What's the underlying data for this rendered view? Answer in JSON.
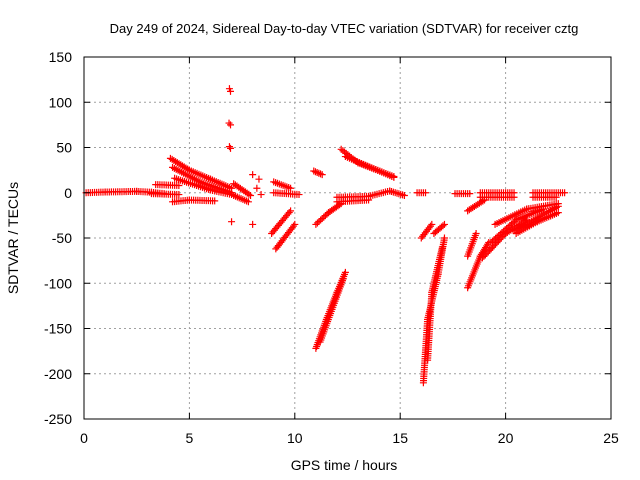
{
  "chart_data": {
    "type": "scatter",
    "title": "Day 249 of 2024, Sidereal Day-to-day VTEC variation (SDTVAR) for receiver cztg",
    "xlabel": "GPS time / hours",
    "ylabel": "SDTVAR / TECUs",
    "xlim": [
      0,
      25
    ],
    "ylim": [
      -250,
      150
    ],
    "xticks": [
      0,
      5,
      10,
      15,
      20,
      25
    ],
    "yticks": [
      150,
      100,
      50,
      0,
      -50,
      -100,
      -150,
      -200,
      -250
    ],
    "grid": true,
    "marker": "+",
    "color": "#ff0000",
    "series": [
      {
        "name": "flat-0-4",
        "segments": [
          [
            0.1,
            0.0,
            1.0,
            0.8
          ],
          [
            1.0,
            0.8,
            2.5,
            1.5
          ],
          [
            2.5,
            1.5,
            3.2,
            0.5
          ],
          [
            3.2,
            0.5,
            3.8,
            -1.0
          ]
        ]
      },
      {
        "name": "flat-3.5-4.5",
        "segments": [
          [
            3.4,
            9.0,
            4.5,
            8.0
          ],
          [
            3.2,
            -1.0,
            4.5,
            -2.0
          ]
        ]
      },
      {
        "name": "arc-4-7-upper",
        "segments": [
          [
            4.1,
            38.0,
            5.0,
            25.0
          ],
          [
            5.0,
            25.0,
            6.0,
            15.0
          ],
          [
            6.0,
            15.0,
            7.0,
            5.0
          ]
        ]
      },
      {
        "name": "arc-4-7-mid",
        "segments": [
          [
            4.2,
            28.0,
            5.5,
            12.0
          ],
          [
            5.5,
            12.0,
            7.0,
            0.0
          ]
        ]
      },
      {
        "name": "arc-4-7-low",
        "segments": [
          [
            4.3,
            16.0,
            6.0,
            3.0
          ],
          [
            6.0,
            3.0,
            7.0,
            -2.0
          ]
        ]
      },
      {
        "name": "dip-4-6",
        "segments": [
          [
            4.2,
            -10.0,
            5.0,
            -8.0
          ],
          [
            5.0,
            -8.0,
            6.2,
            -9.0
          ]
        ]
      },
      {
        "name": "spike-7",
        "points": [
          [
            6.9,
            115.0
          ],
          [
            6.95,
            112.0
          ],
          [
            6.88,
            77.0
          ],
          [
            6.95,
            75.0
          ],
          [
            6.9,
            51.0
          ],
          [
            6.95,
            49.0
          ],
          [
            7.0,
            -32.0
          ],
          [
            8.0,
            -35.0
          ],
          [
            8.0,
            20.0
          ],
          [
            8.3,
            15.0
          ],
          [
            8.2,
            5.0
          ],
          [
            8.4,
            -2.0
          ]
        ]
      },
      {
        "name": "cluster-7-8",
        "segments": [
          [
            7.1,
            10.0,
            7.9,
            -3.0
          ],
          [
            7.1,
            -3.0,
            7.8,
            -10.0
          ]
        ]
      },
      {
        "name": "seg-9-10",
        "segments": [
          [
            9.0,
            12.0,
            9.8,
            5.0
          ],
          [
            9.0,
            0.0,
            10.2,
            -2.0
          ]
        ]
      },
      {
        "name": "falls-9-10",
        "segments": [
          [
            9.8,
            -20.0,
            8.9,
            -45.0
          ],
          [
            10.0,
            -35.0,
            9.1,
            -62.0
          ]
        ]
      },
      {
        "name": "seg-11-tiny",
        "segments": [
          [
            10.9,
            24.0,
            11.3,
            20.0
          ]
        ]
      },
      {
        "name": "deep-11",
        "segments": [
          [
            11.0,
            -172.0,
            11.5,
            -140.0
          ],
          [
            11.5,
            -140.0,
            12.0,
            -110.0
          ],
          [
            12.0,
            -110.0,
            12.4,
            -88.0
          ],
          [
            11.2,
            -165.0,
            12.3,
            -95.0
          ]
        ]
      },
      {
        "name": "mid-11-12",
        "segments": [
          [
            11.0,
            -35.0,
            11.6,
            -22.0
          ],
          [
            11.6,
            -22.0,
            12.2,
            -12.0
          ]
        ]
      },
      {
        "name": "upper-12-14",
        "segments": [
          [
            12.2,
            48.0,
            13.0,
            33.0
          ],
          [
            13.0,
            33.0,
            14.7,
            18.0
          ],
          [
            12.4,
            40.0,
            14.7,
            17.0
          ]
        ]
      },
      {
        "name": "flat-12-15",
        "segments": [
          [
            12.0,
            -5.0,
            13.5,
            -4.0
          ],
          [
            13.5,
            -4.0,
            14.5,
            2.0
          ],
          [
            14.5,
            2.0,
            15.2,
            -3.0
          ],
          [
            12.0,
            -10.0,
            13.5,
            -8.0
          ]
        ]
      },
      {
        "name": "flat-15-16",
        "segments": [
          [
            15.8,
            0.0,
            16.2,
            0.0
          ]
        ]
      },
      {
        "name": "deep-16",
        "segments": [
          [
            16.1,
            -210.0,
            16.3,
            -140.0
          ],
          [
            16.3,
            -140.0,
            16.8,
            -90.0
          ],
          [
            16.8,
            -90.0,
            17.1,
            -50.0
          ],
          [
            16.3,
            -185.0,
            16.5,
            -110.0
          ],
          [
            16.5,
            -110.0,
            17.0,
            -60.0
          ]
        ]
      },
      {
        "name": "mid-16",
        "segments": [
          [
            16.0,
            -50.0,
            16.5,
            -35.0
          ],
          [
            16.6,
            -45.0,
            17.1,
            -35.0
          ]
        ]
      },
      {
        "name": "flat-17.5-19",
        "segments": [
          [
            17.6,
            -1.0,
            18.3,
            -1.0
          ],
          [
            18.8,
            0.0,
            20.4,
            0.0
          ],
          [
            18.8,
            -5.0,
            20.4,
            -5.0
          ]
        ]
      },
      {
        "name": "seg-18-low",
        "segments": [
          [
            18.2,
            -20.0,
            19.0,
            -8.0
          ]
        ]
      },
      {
        "name": "deep-18",
        "segments": [
          [
            18.2,
            -105.0,
            18.8,
            -70.0
          ],
          [
            18.8,
            -70.0,
            19.2,
            -55.0
          ],
          [
            18.2,
            -70.0,
            18.6,
            -45.0
          ]
        ]
      },
      {
        "name": "arc-19-22",
        "segments": [
          [
            18.9,
            -72.0,
            20.0,
            -45.0
          ],
          [
            20.0,
            -45.0,
            21.0,
            -30.0
          ],
          [
            19.3,
            -55.0,
            20.5,
            -30.0
          ],
          [
            20.5,
            -30.0,
            21.8,
            -18.0
          ],
          [
            19.5,
            -35.0,
            21.0,
            -18.0
          ],
          [
            21.0,
            -18.0,
            22.5,
            -12.0
          ],
          [
            20.4,
            -42.0,
            22.5,
            -15.0
          ]
        ]
      },
      {
        "name": "arc-20-22-low",
        "segments": [
          [
            20.5,
            -45.0,
            21.5,
            -32.0
          ],
          [
            21.5,
            -32.0,
            22.5,
            -22.0
          ]
        ]
      },
      {
        "name": "flat-21-23",
        "segments": [
          [
            21.3,
            0.0,
            22.8,
            0.0
          ],
          [
            21.3,
            -5.0,
            22.4,
            -5.0
          ]
        ]
      }
    ]
  }
}
